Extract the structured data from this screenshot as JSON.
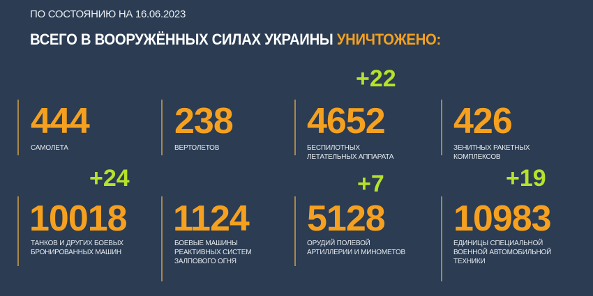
{
  "header": {
    "date_line": "ПО СОСТОЯНИЮ НА 16.06.2023",
    "title_main": "ВСЕГО В ВООРУЖЁННЫХ СИЛАХ УКРАИНЫ",
    "title_highlight": "УНИЧТОЖЕНО:"
  },
  "colors": {
    "background": "#2b3c53",
    "number": "#f5a11f",
    "delta": "#b6e32a",
    "text": "#ffffff"
  },
  "stats": [
    {
      "value": "444",
      "label_lines": [
        "САМОЛЕТА"
      ],
      "delta": ""
    },
    {
      "value": "238",
      "label_lines": [
        "ВЕРТОЛЕТОВ"
      ],
      "delta": ""
    },
    {
      "value": "4652",
      "label_lines": [
        "БЕСПИЛОТНЫХ",
        "ЛЕТАТЕЛЬНЫХ АППАРАТА"
      ],
      "delta": "+22"
    },
    {
      "value": "426",
      "label_lines": [
        "ЗЕНИТНЫХ РАКЕТНЫХ",
        "КОМПЛЕКСОВ"
      ],
      "delta": ""
    },
    {
      "value": "10018",
      "label_lines": [
        "ТАНКОВ И ДРУГИХ БОЕВЫХ",
        "БРОНИРОВАННЫХ МАШИН"
      ],
      "delta": "+24"
    },
    {
      "value": "1124",
      "label_lines": [
        "БОЕВЫЕ МАШИНЫ",
        "РЕАКТИВНЫХ СИСТЕМ",
        "ЗАЛПОВОГО ОГНЯ"
      ],
      "delta": ""
    },
    {
      "value": "5128",
      "label_lines": [
        "ОРУДИЙ ПОЛЕВОЙ",
        "АРТИЛЛЕРИИ И МИНОМЕТОВ"
      ],
      "delta": "+7"
    },
    {
      "value": "10983",
      "label_lines": [
        "ЕДИНИЦЫ СПЕЦИАЛЬНОЙ",
        "ВОЕННОЙ АВТОМОБИЛЬНОЙ",
        "ТЕХНИКИ"
      ],
      "delta": "+19"
    }
  ]
}
